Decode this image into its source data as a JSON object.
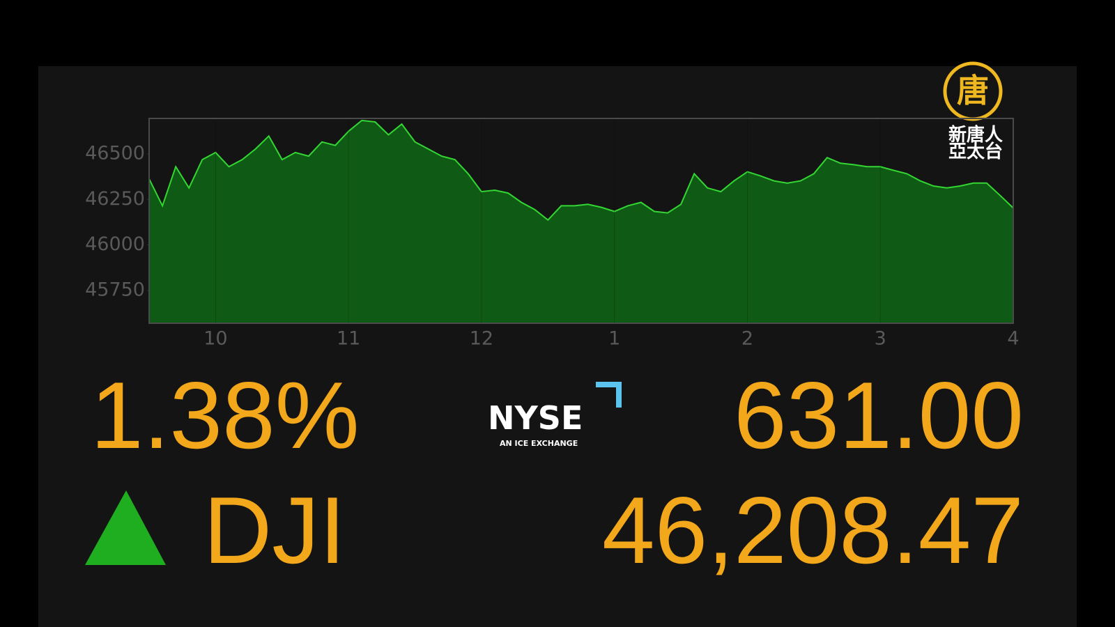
{
  "chart_data": {
    "type": "area",
    "x": [
      9.5,
      9.6,
      9.7,
      9.8,
      9.9,
      10.0,
      10.1,
      10.2,
      10.3,
      10.4,
      10.5,
      10.6,
      10.7,
      10.8,
      10.9,
      11.0,
      11.1,
      11.2,
      11.3,
      11.4,
      11.5,
      11.6,
      11.7,
      11.8,
      11.9,
      12.0,
      12.1,
      12.2,
      12.3,
      12.4,
      12.5,
      12.6,
      12.7,
      12.8,
      12.9,
      13.0,
      13.1,
      13.2,
      13.3,
      13.4,
      13.5,
      13.6,
      13.7,
      13.8,
      13.9,
      14.0,
      14.1,
      14.2,
      14.3,
      14.4,
      14.5,
      14.6,
      14.7,
      14.8,
      14.9,
      15.0,
      15.1,
      15.2,
      15.3,
      15.4,
      15.5,
      15.6,
      15.7,
      15.8,
      15.9,
      16.0
    ],
    "series": [
      {
        "name": "DJI",
        "color": "#33d633",
        "fill": "#0f5a14",
        "values": [
          46363,
          46215,
          46430,
          46313,
          46469,
          46508,
          46430,
          46469,
          46527,
          46598,
          46469,
          46508,
          46488,
          46566,
          46547,
          46625,
          46684,
          46676,
          46605,
          46664,
          46566,
          46527,
          46488,
          46469,
          46391,
          46293,
          46301,
          46285,
          46234,
          46195,
          46137,
          46215,
          46215,
          46223,
          46207,
          46184,
          46215,
          46234,
          46184,
          46176,
          46223,
          46391,
          46313,
          46293,
          46352,
          46402,
          46379,
          46352,
          46340,
          46352,
          46391,
          46480,
          46449,
          46441,
          46430,
          46430,
          46410,
          46391,
          46352,
          46324,
          46313,
          46324,
          46340,
          46340,
          46273,
          46203
        ]
      }
    ],
    "xlim": [
      9.5,
      16
    ],
    "xticks": [
      10,
      11,
      12,
      {
        "value": 13,
        "label": "1"
      },
      {
        "value": 14,
        "label": "2"
      },
      {
        "value": 15,
        "label": "3"
      },
      {
        "value": 16,
        "label": "4"
      }
    ],
    "ylim": [
      45570,
      46695
    ],
    "yticks": [
      45750,
      46000,
      46250,
      46500
    ],
    "grid": "x"
  },
  "ticker": {
    "change_percent": "1.38%",
    "symbol": "DJI",
    "change": "631.00",
    "price": "46,208.47"
  },
  "exchange_logo": {
    "name": "NYSE",
    "tagline": "AN ICE EXCHANGE"
  },
  "channel_logo": {
    "emblem": "唐",
    "line1": "新唐人",
    "line2": "亞太台"
  }
}
